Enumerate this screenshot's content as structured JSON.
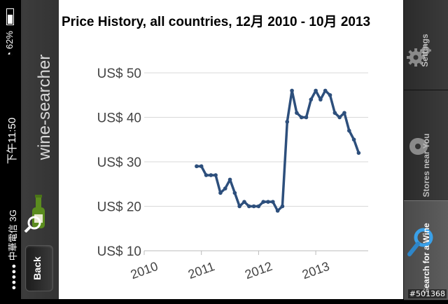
{
  "status_bar": {
    "carrier": "中華電信",
    "network": "3G",
    "signal_dots": "●●●●●",
    "time": "下午11:50",
    "battery": "62%"
  },
  "sidebar": {
    "brand": "wine-searcher",
    "back_label": "Back"
  },
  "tabs": [
    {
      "label": "Settings",
      "icon": "gear-icon"
    },
    {
      "label": "Stores near You",
      "icon": "map-pin-icon"
    },
    {
      "label": "Search for a Wine",
      "icon": "magnifier-icon"
    }
  ],
  "watermark": "#501368",
  "chart_data": {
    "type": "line",
    "title": "Price History, all countries, 12月 2010 - 10月 2013",
    "y_tick_labels": [
      "US$ 10",
      "US$ 20",
      "US$ 30",
      "US$ 40",
      "US$ 50"
    ],
    "y_ticks": [
      10,
      20,
      30,
      40,
      50
    ],
    "x_tick_labels": [
      "2010",
      "2011",
      "2012",
      "2013"
    ],
    "ylim": [
      10,
      50
    ],
    "xlim": [
      "2010-01",
      "2013-12"
    ],
    "grid": "horizontal",
    "line_color": "#2d4f7c",
    "series": [
      {
        "x": [
          "2010-12",
          "2011-01",
          "2011-02",
          "2011-03",
          "2011-04",
          "2011-05",
          "2011-06",
          "2011-07",
          "2011-08",
          "2011-09",
          "2011-10",
          "2011-11",
          "2011-12",
          "2012-01",
          "2012-02",
          "2012-03",
          "2012-04",
          "2012-05",
          "2012-06",
          "2012-07",
          "2012-08",
          "2012-09",
          "2012-10",
          "2012-11",
          "2012-12",
          "2013-01",
          "2013-02",
          "2013-03",
          "2013-04",
          "2013-05",
          "2013-06",
          "2013-07",
          "2013-08",
          "2013-09",
          "2013-10"
        ],
        "values": [
          29,
          29,
          27,
          27,
          27,
          23,
          24,
          26,
          23,
          20,
          21,
          20,
          20,
          20,
          21,
          21,
          21,
          19,
          20,
          39,
          46,
          41,
          40,
          40,
          44,
          46,
          44,
          46,
          45,
          41,
          40,
          41,
          37,
          35,
          32
        ]
      }
    ]
  }
}
